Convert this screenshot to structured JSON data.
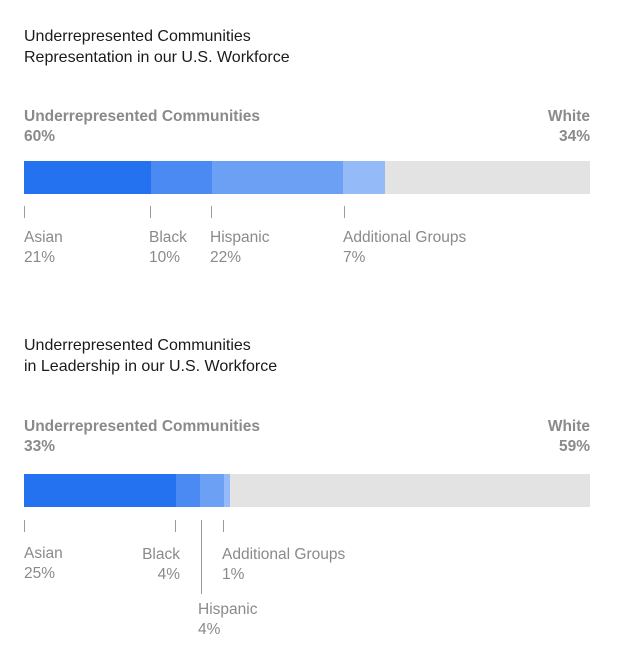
{
  "chart_data": [
    {
      "type": "bar",
      "title": [
        "Underrepresented Communities",
        "Representation in our U.S. Workforce"
      ],
      "summary": {
        "left_label": "Underrepresented Communities",
        "left_value": "60%",
        "right_label": "White",
        "right_value": "34%"
      },
      "segments": [
        {
          "name": "Asian",
          "value": 21,
          "label": "21%",
          "color": "#2472f0"
        },
        {
          "name": "Black",
          "value": 10,
          "label": "10%",
          "color": "#4a8af2"
        },
        {
          "name": "Hispanic",
          "value": 22,
          "label": "22%",
          "color": "#6ca0f5"
        },
        {
          "name": "Additional Groups",
          "value": 7,
          "label": "7%",
          "color": "#94bbf8"
        }
      ],
      "remainder_color": "#e3e3e3"
    },
    {
      "type": "bar",
      "title": [
        "Underrepresented Communities",
        "in Leadership in our U.S. Workforce"
      ],
      "summary": {
        "left_label": "Underrepresented Communities",
        "left_value": "33%",
        "right_label": "White",
        "right_value": "59%"
      },
      "segments": [
        {
          "name": "Asian",
          "value": 25,
          "label": "25%",
          "color": "#2472f0"
        },
        {
          "name": "Black",
          "value": 4,
          "label": "4%",
          "color": "#4a8af2"
        },
        {
          "name": "Hispanic",
          "value": 4,
          "label": "4%",
          "color": "#6ca0f5"
        },
        {
          "name": "Additional Groups",
          "value": 1,
          "label": "1%",
          "color": "#94bbf8"
        }
      ],
      "remainder_color": "#e3e3e3"
    }
  ]
}
